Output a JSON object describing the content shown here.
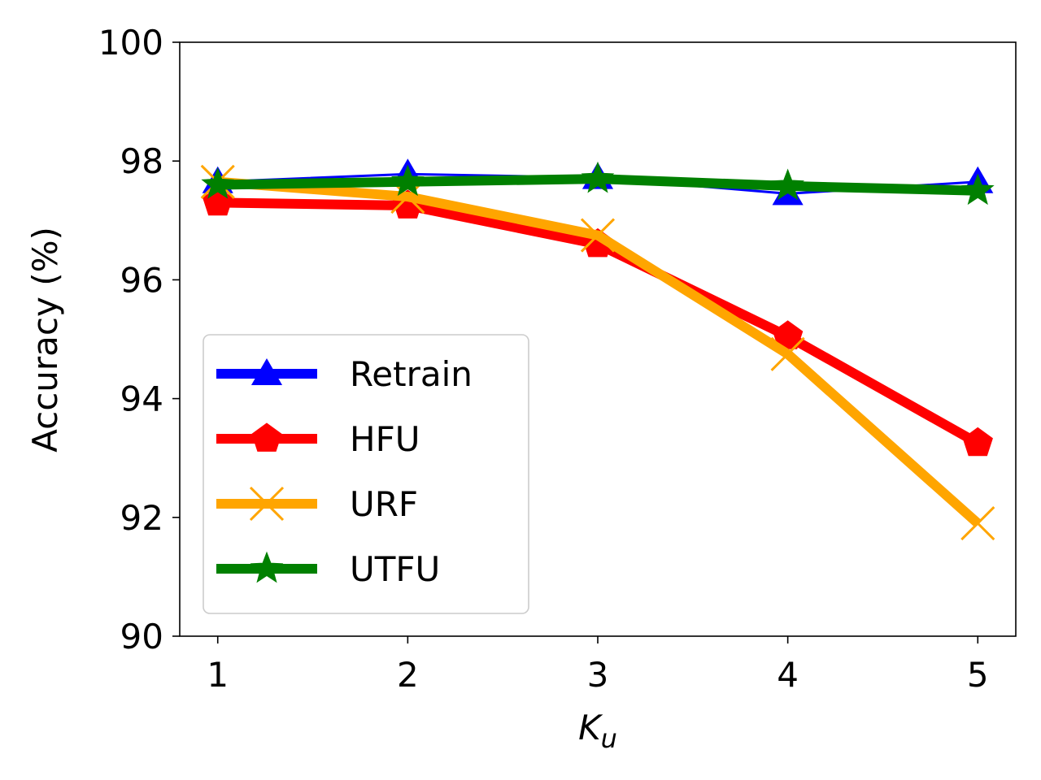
{
  "chart_data": {
    "type": "line",
    "x": [
      1,
      2,
      3,
      4,
      5
    ],
    "xlabel": "K",
    "xlabel_sub": "u",
    "ylabel": "Accuracy (%)",
    "xlim": [
      0.8,
      5.2
    ],
    "ylim": [
      90,
      100
    ],
    "xticks": [
      "1",
      "2",
      "3",
      "4",
      "5"
    ],
    "yticks": [
      "90",
      "92",
      "94",
      "96",
      "98",
      "100"
    ],
    "grid": false,
    "legend_position": "lower-left",
    "series": [
      {
        "name": "Retrain",
        "color": "#0000ff",
        "marker": "triangle-up",
        "linewidth": "thin",
        "values": [
          97.65,
          97.78,
          97.72,
          97.45,
          97.65
        ]
      },
      {
        "name": "HFU",
        "color": "#ff0000",
        "marker": "pentagon",
        "linewidth": "thick",
        "values": [
          97.3,
          97.25,
          96.6,
          95.05,
          93.25
        ]
      },
      {
        "name": "URF",
        "color": "#ffa500",
        "marker": "x",
        "linewidth": "thick",
        "values": [
          97.65,
          97.4,
          96.75,
          94.75,
          91.9
        ]
      },
      {
        "name": "UTFU",
        "color": "#008000",
        "marker": "star",
        "linewidth": "thick",
        "values": [
          97.6,
          97.65,
          97.7,
          97.58,
          97.5
        ]
      }
    ]
  }
}
